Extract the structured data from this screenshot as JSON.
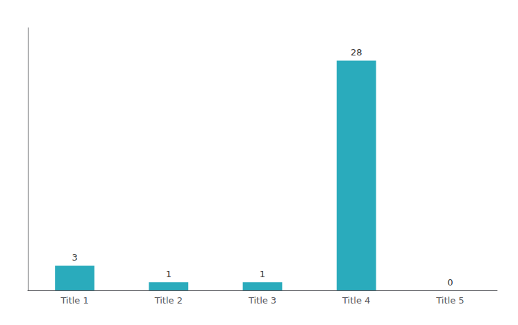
{
  "chart_data": {
    "type": "bar",
    "categories": [
      "Title 1",
      "Title 2",
      "Title 3",
      "Title 4",
      "Title 5"
    ],
    "values": [
      3,
      1,
      1,
      28,
      0
    ],
    "color": "#2AABBC",
    "ylim": [
      0,
      32
    ],
    "yticks": [],
    "grid": false,
    "data_labels": true,
    "tick_labels": "x"
  }
}
